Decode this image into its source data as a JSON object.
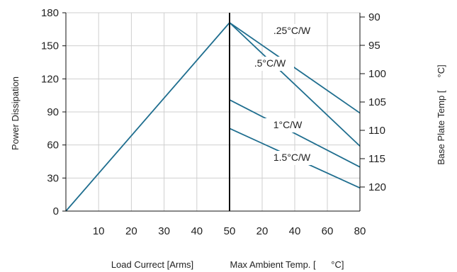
{
  "chart_data": {
    "type": "line",
    "title": "",
    "grid": true,
    "colors": {
      "line": "#1f6e8f",
      "grid": "#cfcfcf",
      "axis": "#111111"
    },
    "left_panel": {
      "xlabel": "Load Currect [Arms]",
      "ylabel": "Power Dissipation",
      "xlim": [
        0,
        50
      ],
      "ylim": [
        0,
        180
      ],
      "xticks": [
        "10",
        "20",
        "30",
        "40",
        "50"
      ],
      "yticks": [
        "0",
        "30",
        "60",
        "90",
        "120",
        "150",
        "180"
      ],
      "series": [
        {
          "x": [
            0,
            50
          ],
          "y": [
            0,
            171
          ]
        }
      ]
    },
    "right_panel": {
      "xlabel": "Max Ambient Temp. [      °C]",
      "y2label": "Base Plate Temp [     °C]",
      "xlim": [
        0,
        80
      ],
      "ylim_power": [
        0,
        180
      ],
      "xticks": [
        "20",
        "40",
        "60",
        "80"
      ],
      "right_yticks": [
        "90",
        "95",
        "100",
        "105",
        "110",
        "115",
        "120"
      ],
      "series": [
        {
          "name": ".25°C/W",
          "label": ".25°C/W",
          "x": [
            0,
            80
          ],
          "y": [
            171,
            89
          ]
        },
        {
          "name": ".5°C/W",
          "label": ".5°C/W",
          "x": [
            0,
            80
          ],
          "y": [
            171,
            59
          ]
        },
        {
          "name": "1°C/W",
          "label": "1°C/W",
          "x": [
            0,
            80
          ],
          "y": [
            101,
            40
          ]
        },
        {
          "name": "1.5°C/W",
          "label": "1.5°C/W",
          "x": [
            0,
            80
          ],
          "y": [
            75,
            21
          ]
        }
      ]
    }
  }
}
